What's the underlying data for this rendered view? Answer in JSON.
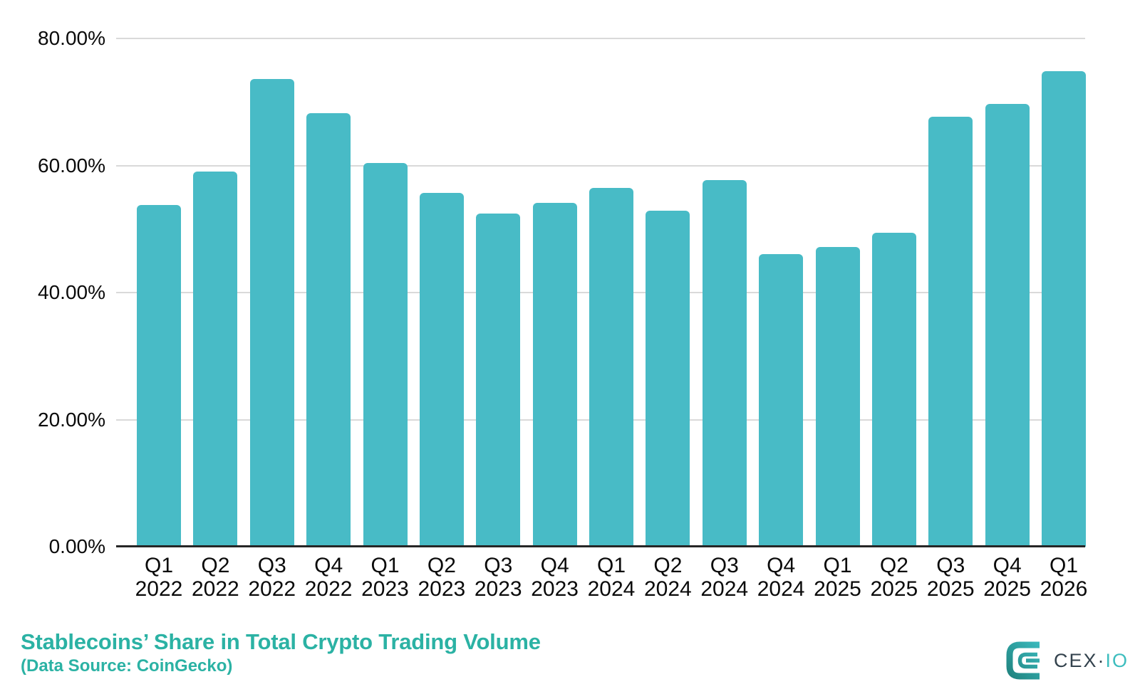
{
  "chart_data": {
    "type": "bar",
    "title": "Stablecoins’ Share in Total Crypto Trading Volume",
    "subtitle": "(Data Source: CoinGecko)",
    "categories": [
      {
        "quarter": "Q1",
        "year": "2022"
      },
      {
        "quarter": "Q2",
        "year": "2022"
      },
      {
        "quarter": "Q3",
        "year": "2022"
      },
      {
        "quarter": "Q4",
        "year": "2022"
      },
      {
        "quarter": "Q1",
        "year": "2023"
      },
      {
        "quarter": "Q2",
        "year": "2023"
      },
      {
        "quarter": "Q3",
        "year": "2023"
      },
      {
        "quarter": "Q4",
        "year": "2023"
      },
      {
        "quarter": "Q1",
        "year": "2024"
      },
      {
        "quarter": "Q2",
        "year": "2024"
      },
      {
        "quarter": "Q3",
        "year": "2024"
      },
      {
        "quarter": "Q4",
        "year": "2024"
      },
      {
        "quarter": "Q1",
        "year": "2025"
      },
      {
        "quarter": "Q2",
        "year": "2025"
      },
      {
        "quarter": "Q3",
        "year": "2025"
      },
      {
        "quarter": "Q4",
        "year": "2025"
      },
      {
        "quarter": "Q1",
        "year": "2026"
      }
    ],
    "values": [
      53.8,
      59.0,
      73.6,
      68.2,
      60.4,
      55.7,
      52.4,
      54.1,
      56.5,
      52.9,
      57.7,
      46.1,
      47.2,
      49.4,
      67.7,
      69.7,
      74.9
    ],
    "unit": "%",
    "y_ticks": [
      {
        "label": "80.00%",
        "value": 80
      },
      {
        "label": "60.00%",
        "value": 60
      },
      {
        "label": "40.00%",
        "value": 40
      },
      {
        "label": "20.00%",
        "value": 20
      },
      {
        "label": "0.00%",
        "value": 0
      }
    ],
    "ylim": [
      0,
      80
    ],
    "xlabel": "",
    "ylabel": "",
    "grid": true,
    "legend": "none",
    "bar_color": "#48BBC6",
    "gridline_color": "#D9D9D9",
    "axis_line_color": "#262626",
    "tick_label_color": "#0A0A0A"
  },
  "footer": {
    "title": "Stablecoins’ Share in Total Crypto Trading Volume",
    "subtitle": "(Data Source: CoinGecko)",
    "accent_color": "#2BB2A4"
  },
  "logo": {
    "cex": "CEX",
    "dot": "·",
    "io": "IO",
    "cex_color": "#33424D",
    "io_color": "#3DBDBE",
    "mark_gradient_start": "#1E7F7A",
    "mark_gradient_end": "#3EC1C6"
  }
}
